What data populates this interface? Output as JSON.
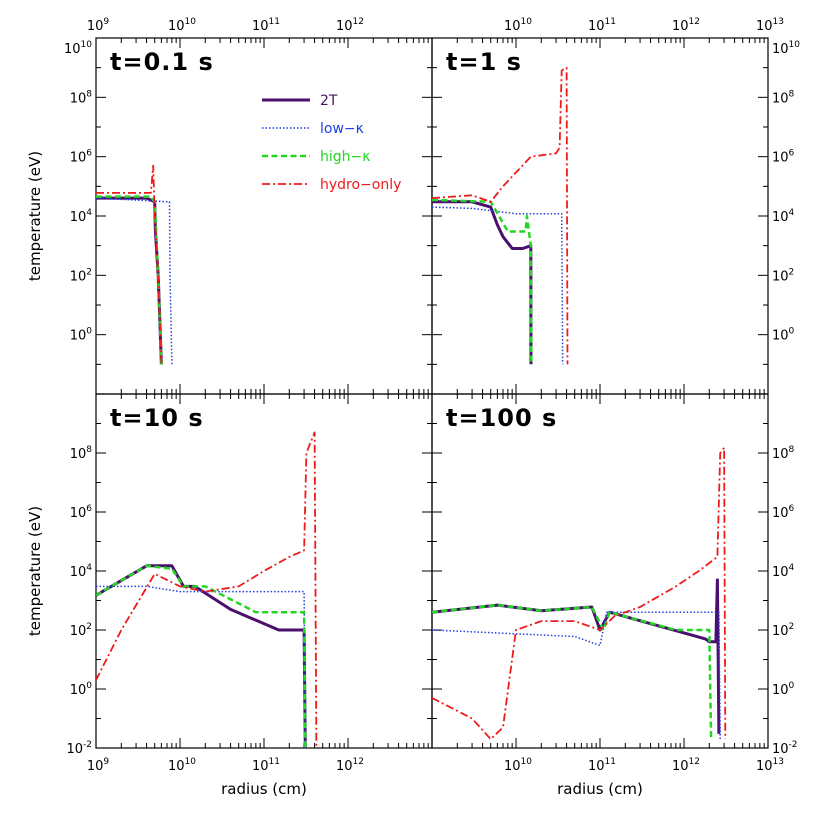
{
  "colors": {
    "2T": "#4b0f6e",
    "low-kappa": "#1f3fe0",
    "high-kappa": "#22d622",
    "hydro-only": "#ee1b1b",
    "axis": "#000000"
  },
  "chart_data": [
    {
      "type": "line",
      "title": "t=0.1 s",
      "ylabel": "temperature (eV)",
      "xlabel": "",
      "xscale": "log",
      "yscale": "log",
      "xlim": [
        1000000000.0,
        10000000000000.0
      ],
      "ylim": [
        0.01,
        10000000000.0
      ],
      "x_tick_labels": [
        "10^9",
        "10^10",
        "10^11",
        "10^12"
      ],
      "y_tick_labels": [
        "10^0",
        "10^2",
        "10^4",
        "10^6",
        "10^8",
        "10^10"
      ],
      "legend": {
        "placement": "top-right",
        "entries": [
          "2T",
          "low−κ",
          "high−κ",
          "hydro−only"
        ]
      },
      "series": [
        {
          "key": "2T",
          "name": "2T",
          "points": [
            [
              1000000000.0,
              40000
            ],
            [
              4000000000.0,
              40000
            ],
            [
              5000000000.0,
              30000
            ],
            [
              5100000000.0,
              3000
            ],
            [
              5500000000.0,
              100
            ],
            [
              6000000000.0,
              0.1
            ]
          ]
        },
        {
          "key": "low-kappa",
          "name": "low−κ",
          "points": [
            [
              1000000000.0,
              40000
            ],
            [
              7500000000.0,
              30000
            ],
            [
              7600000000.0,
              100
            ],
            [
              8000000000.0,
              0.1
            ]
          ]
        },
        {
          "key": "high-kappa",
          "name": "high−κ",
          "points": [
            [
              1000000000.0,
              45000
            ],
            [
              4500000000.0,
              45000
            ],
            [
              5000000000.0,
              30000
            ],
            [
              5500000000.0,
              100
            ],
            [
              6000000000.0,
              0.1
            ]
          ]
        },
        {
          "key": "hydro-only",
          "name": "hydro−only",
          "points": [
            [
              1000000000.0,
              60000
            ],
            [
              4500000000.0,
              60000
            ],
            [
              4800000000.0,
              500000
            ],
            [
              5000000000.0,
              10000
            ],
            [
              5500000000.0,
              100
            ],
            [
              6000000000.0,
              0.1
            ]
          ]
        }
      ]
    },
    {
      "type": "line",
      "title": "t=1 s",
      "ylabel": "",
      "xlabel": "",
      "xscale": "log",
      "yscale": "log",
      "xlim": [
        1000000000.0,
        10000000000000.0
      ],
      "ylim": [
        0.01,
        10000000000.0
      ],
      "x_tick_labels": [
        "10^10",
        "10^11",
        "10^12",
        "10^13"
      ],
      "y_tick_labels": [
        "10^0",
        "10^2",
        "10^4",
        "10^6",
        "10^8",
        "10^10"
      ],
      "series": [
        {
          "key": "2T",
          "name": "2T",
          "points": [
            [
              1000000000.0,
              30000
            ],
            [
              3000000000.0,
              30000
            ],
            [
              5000000000.0,
              20000
            ],
            [
              6000000000.0,
              5000
            ],
            [
              7000000000.0,
              2000
            ],
            [
              9000000000.0,
              800
            ],
            [
              12000000000.0,
              800
            ],
            [
              15000000000.0,
              1000
            ],
            [
              15100000000.0,
              0.1
            ]
          ]
        },
        {
          "key": "low-kappa",
          "name": "low−κ",
          "points": [
            [
              1000000000.0,
              20000
            ],
            [
              3000000000.0,
              18000
            ],
            [
              10000000000.0,
              12000
            ],
            [
              35000000000.0,
              12000
            ],
            [
              36000000000.0,
              0.1
            ]
          ]
        },
        {
          "key": "high-kappa",
          "name": "high−κ",
          "points": [
            [
              1000000000.0,
              35000
            ],
            [
              5000000000.0,
              30000
            ],
            [
              8000000000.0,
              3000
            ],
            [
              13000000000.0,
              3000
            ],
            [
              13500000000.0,
              10000
            ],
            [
              15000000000.0,
              1000
            ],
            [
              15200000000.0,
              0.1
            ]
          ]
        },
        {
          "key": "hydro-only",
          "name": "hydro−only",
          "points": [
            [
              1000000000.0,
              40000
            ],
            [
              3000000000.0,
              50000
            ],
            [
              5000000000.0,
              30000
            ],
            [
              7000000000.0,
              100000
            ],
            [
              15000000000.0,
              1000000
            ],
            [
              30000000000.0,
              1300000
            ],
            [
              33000000000.0,
              2000000
            ],
            [
              35000000000.0,
              800000000
            ],
            [
              40000000000.0,
              1000000000
            ],
            [
              41000000000.0,
              0.1
            ]
          ]
        }
      ]
    },
    {
      "type": "line",
      "title": "t=10 s",
      "ylabel": "temperature (eV)",
      "xlabel": "radius (cm)",
      "xscale": "log",
      "yscale": "log",
      "xlim": [
        1000000000.0,
        10000000000000.0
      ],
      "ylim": [
        0.01,
        10000000000.0
      ],
      "x_tick_labels": [
        "10^9",
        "10^10",
        "10^11",
        "10^12"
      ],
      "y_tick_labels": [
        "10^-2",
        "10^0",
        "10^2",
        "10^4",
        "10^6",
        "10^8"
      ],
      "series": [
        {
          "key": "2T",
          "name": "2T",
          "points": [
            [
              1000000000.0,
              1500
            ],
            [
              4000000000.0,
              15000
            ],
            [
              8000000000.0,
              15000
            ],
            [
              11000000000.0,
              3000
            ],
            [
              15000000000.0,
              3000
            ],
            [
              40000000000.0,
              500
            ],
            [
              150000000000.0,
              100
            ],
            [
              300000000000.0,
              100
            ],
            [
              310000000000.0,
              0.01
            ]
          ]
        },
        {
          "key": "low-kappa",
          "name": "low−κ",
          "points": [
            [
              1000000000.0,
              3000
            ],
            [
              4000000000.0,
              3000
            ],
            [
              10000000000.0,
              2000
            ],
            [
              300000000000.0,
              2000
            ],
            [
              310000000000.0,
              0.01
            ]
          ]
        },
        {
          "key": "high-kappa",
          "name": "high−κ",
          "points": [
            [
              1000000000.0,
              1500
            ],
            [
              4000000000.0,
              15000
            ],
            [
              8000000000.0,
              12000
            ],
            [
              11000000000.0,
              3000
            ],
            [
              20000000000.0,
              3000
            ],
            [
              80000000000.0,
              400
            ],
            [
              300000000000.0,
              400
            ],
            [
              310000000000.0,
              0.01
            ]
          ]
        },
        {
          "key": "hydro-only",
          "name": "hydro−only",
          "points": [
            [
              1000000000.0,
              2
            ],
            [
              2000000000.0,
              100
            ],
            [
              5000000000.0,
              8000
            ],
            [
              10000000000.0,
              3000
            ],
            [
              20000000000.0,
              2000
            ],
            [
              50000000000.0,
              3000
            ],
            [
              100000000000.0,
              10000
            ],
            [
              200000000000.0,
              30000
            ],
            [
              300000000000.0,
              50000
            ],
            [
              320000000000.0,
              100000000
            ],
            [
              400000000000.0,
              500000000
            ],
            [
              420000000000.0,
              0.01
            ]
          ]
        }
      ]
    },
    {
      "type": "line",
      "title": "t=100 s",
      "ylabel": "",
      "xlabel": "radius (cm)",
      "xscale": "log",
      "yscale": "log",
      "xlim": [
        1000000000.0,
        10000000000000.0
      ],
      "ylim": [
        0.01,
        10000000000.0
      ],
      "x_tick_labels": [
        "10^10",
        "10^11",
        "10^12",
        "10^13"
      ],
      "y_tick_labels": [
        "10^-2",
        "10^0",
        "10^2",
        "10^4",
        "10^6",
        "10^8"
      ],
      "series": [
        {
          "key": "2T",
          "name": "2T",
          "points": [
            [
              1000000000.0,
              400
            ],
            [
              6000000000.0,
              700
            ],
            [
              20000000000.0,
              450
            ],
            [
              80000000000.0,
              600
            ],
            [
              100000000000.0,
              100
            ],
            [
              130000000000.0,
              400
            ],
            [
              1800000000000.0,
              50
            ],
            [
              2000000000000.0,
              40
            ],
            [
              2400000000000.0,
              40
            ],
            [
              2500000000000.0,
              5000
            ],
            [
              2600000000000.0,
              0.03
            ]
          ]
        },
        {
          "key": "low-kappa",
          "name": "low−κ",
          "points": [
            [
              1000000000.0,
              100
            ],
            [
              50000000000.0,
              60
            ],
            [
              100000000000.0,
              30
            ],
            [
              120000000000.0,
              400
            ],
            [
              2600000000000.0,
              400
            ],
            [
              2700000000000.0,
              0.02
            ]
          ]
        },
        {
          "key": "high-kappa",
          "name": "high−κ",
          "points": [
            [
              1000000000.0,
              400
            ],
            [
              6000000000.0,
              700
            ],
            [
              20000000000.0,
              450
            ],
            [
              80000000000.0,
              600
            ],
            [
              110000000000.0,
              100
            ],
            [
              130000000000.0,
              400
            ],
            [
              800000000000.0,
              100
            ],
            [
              2000000000000.0,
              100
            ],
            [
              2100000000000.0,
              0.02
            ]
          ]
        },
        {
          "key": "hydro-only",
          "name": "hydro−only",
          "points": [
            [
              1000000000.0,
              0.5
            ],
            [
              3000000000.0,
              0.1
            ],
            [
              5000000000.0,
              0.02
            ],
            [
              7000000000.0,
              0.05
            ],
            [
              10000000000.0,
              100
            ],
            [
              20000000000.0,
              200
            ],
            [
              50000000000.0,
              200
            ],
            [
              100000000000.0,
              100
            ],
            [
              150000000000.0,
              300
            ],
            [
              300000000000.0,
              600
            ],
            [
              800000000000.0,
              3000
            ],
            [
              1500000000000.0,
              10000
            ],
            [
              2500000000000.0,
              30000
            ],
            [
              2700000000000.0,
              100000000
            ],
            [
              3000000000000.0,
              150000000
            ],
            [
              3100000000000.0,
              0.02
            ]
          ]
        }
      ]
    }
  ]
}
